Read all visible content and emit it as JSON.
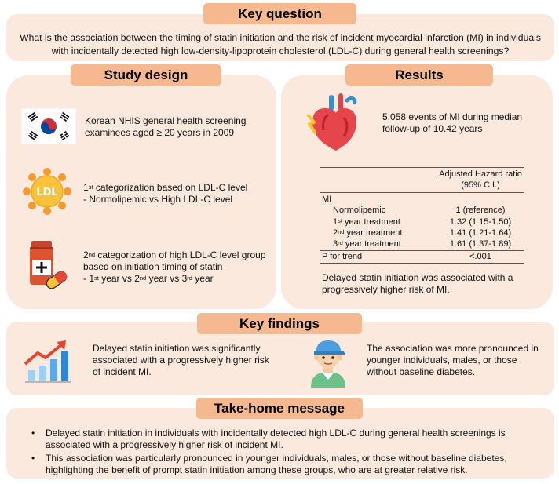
{
  "key_question": {
    "header": "Key question",
    "text": "What is the association between the timing of statin initiation and the risk of incident myocardial infarction (MI) in individuals with incidentally detected high low-density-lipoprotein cholesterol (LDL-C) during general health screenings?"
  },
  "study_design": {
    "header": "Study design",
    "item1": "Korean NHIS general health screening examinees aged ≥ 20 years in 2009",
    "item2": {
      "ord_num": "1",
      "ord_sup": "st",
      "line1_rest": " categorization based on LDL-C level",
      "line2": "- Normolipemic vs High LDL-C level"
    },
    "ldl_label": "LDL",
    "item3": {
      "ord_num": "2",
      "ord_sup": "nd",
      "line1_rest": " categorization of high LDL-C level group",
      "line2": "based on initiation timing of statin",
      "line3_prefix": "- 1",
      "sup1": "st",
      "mid1": " year vs 2",
      "sup2": "nd",
      "mid2": " year vs 3",
      "sup3": "rd",
      "end": " year"
    }
  },
  "results": {
    "header": "Results",
    "events_text": "5,058 events of MI during median follow-up of 10.42 years",
    "table": {
      "col_header_line1": "Adjusted Hazard ratio",
      "col_header_line2": "(95% C.I.)",
      "group_label": "MI",
      "rows": [
        {
          "label": "Normolipemic",
          "value": "1 (reference)"
        },
        {
          "num": "1",
          "sup": "st",
          "rest": " year treatment",
          "value": "1.32 (1 15-1.50)"
        },
        {
          "num": "2",
          "sup": "nd",
          "rest": " year treatment",
          "value": "1.41 (1.21-1.64)"
        },
        {
          "num": "3",
          "sup": "rd",
          "rest": " year treatment",
          "value": "1.61 (1.37-1.89)"
        }
      ],
      "p_trend_label": "P for trend",
      "p_trend_value": "<.001"
    },
    "conclusion": "Delayed statin initiation was associated with a progressively higher risk of MI."
  },
  "key_findings": {
    "header": "Key findings",
    "left": "Delayed statin initiation was significantly associated with a progressively higher risk of incident MI.",
    "right": "The association was more pronounced in younger individuals, males, or those without baseline diabetes."
  },
  "take_home": {
    "header": "Take-home message",
    "bullets": [
      "Delayed statin initiation in individuals with incidentally detected high LDL-C during general health screenings is associated with a progressively higher risk of incident MI.",
      "This association was particularly pronounced in younger individuals, males, or those without baseline diabetes, highlighting the benefit of prompt statin initiation among these groups, who are at greater relative risk."
    ]
  },
  "colors": {
    "panel_bg": "#fbe9dd",
    "header_bg": "#f6b98f"
  },
  "icons": [
    "korea-flag-icon",
    "ldl-cholesterol-icon",
    "medicine-bottle-icon",
    "heart-icon",
    "growth-chart-icon",
    "young-man-icon"
  ]
}
